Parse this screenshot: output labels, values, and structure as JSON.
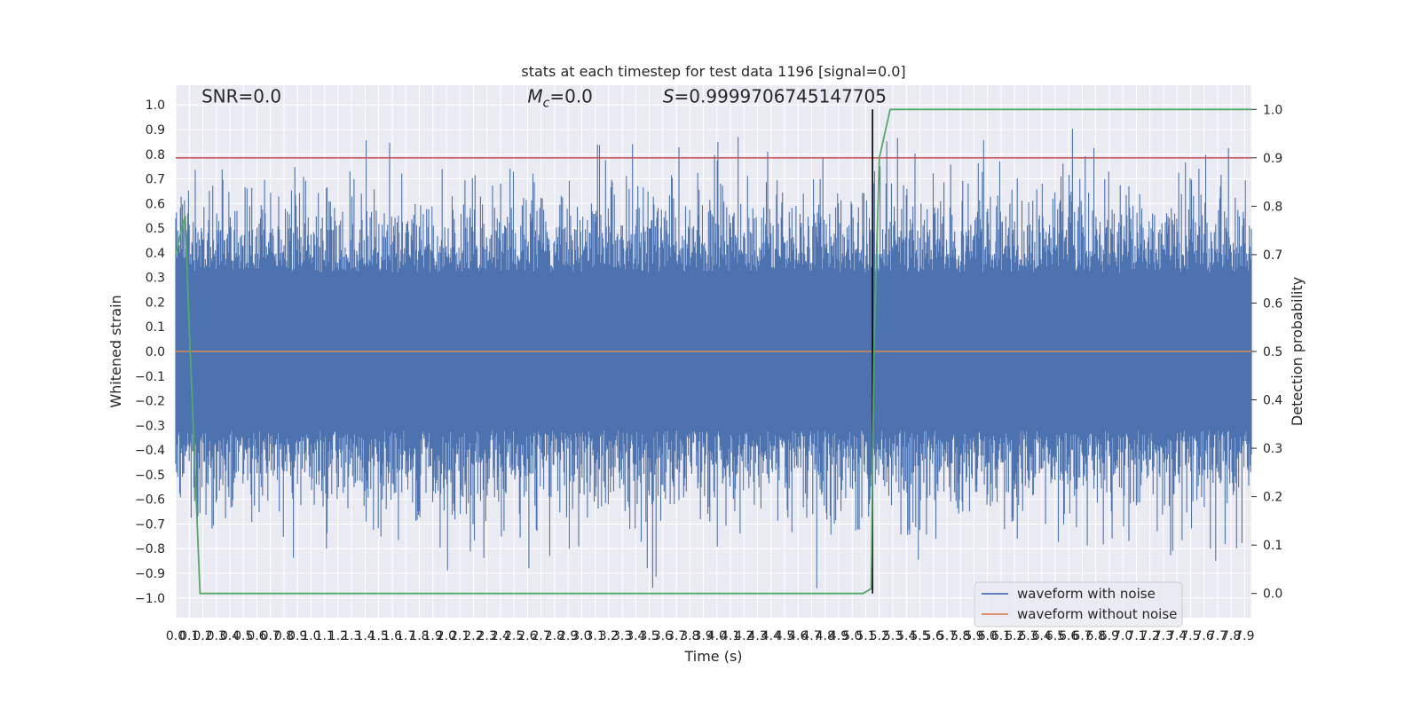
{
  "chart_data": {
    "type": "line",
    "title": "stats at each timestep for test data 1196 [signal=0.0]",
    "xlabel": "Time (s)",
    "ylabel": "Whitened strain",
    "ylabel_right": "Detection probability",
    "xlim": [
      0.0,
      7.95
    ],
    "ylim": [
      -1.08,
      1.08
    ],
    "ylim_right": [
      -0.05,
      1.05
    ],
    "x_ticks": [
      0.0,
      0.1,
      0.2,
      0.3,
      0.4,
      0.5,
      0.6,
      0.7,
      0.8,
      0.9,
      1.0,
      1.1,
      1.2,
      1.3,
      1.4,
      1.5,
      1.6,
      1.7,
      1.8,
      1.9,
      2.0,
      2.1,
      2.2,
      2.3,
      2.4,
      2.5,
      2.6,
      2.7,
      2.8,
      2.9,
      3.0,
      3.1,
      3.2,
      3.3,
      3.4,
      3.5,
      3.6,
      3.7,
      3.8,
      3.9,
      4.0,
      4.1,
      4.2,
      4.3,
      4.4,
      4.5,
      4.6,
      4.7,
      4.8,
      4.9,
      5.0,
      5.1,
      5.2,
      5.3,
      5.4,
      5.5,
      5.6,
      5.7,
      5.8,
      5.9,
      6.0,
      6.1,
      6.2,
      6.3,
      6.4,
      6.5,
      6.6,
      6.7,
      6.8,
      6.9,
      7.0,
      7.1,
      7.2,
      7.3,
      7.4,
      7.5,
      7.6,
      7.7,
      7.8,
      7.9
    ],
    "x_tick_labels": [
      "0.0",
      "0.1",
      "0.2",
      "0.3",
      "0.4",
      "0.5",
      "0.6",
      "0.7",
      "0.8",
      "0.9",
      "1.0",
      "1.1",
      "1.2",
      "1.3",
      "1.4",
      "1.5",
      "1.6",
      "1.7",
      "1.8",
      "1.9",
      "2.0",
      "2.1",
      "2.2",
      "2.3",
      "2.4",
      "2.5",
      "2.6",
      "2.7",
      "2.8",
      "2.9",
      "3.0",
      "3.1",
      "3.2",
      "3.3",
      "3.4",
      "3.5",
      "3.6",
      "3.7",
      "3.8",
      "3.9",
      "4.0",
      "4.1",
      "4.2",
      "4.3",
      "4.4",
      "4.5",
      "4.6",
      "4.7",
      "4.8",
      "4.9",
      "5.0",
      "5.1",
      "5.2",
      "5.3",
      "5.4",
      "5.5",
      "5.6",
      "5.7",
      "5.8",
      "5.9",
      "6.0",
      "6.1",
      "6.2",
      "6.3",
      "6.4",
      "6.5",
      "6.6",
      "6.7",
      "6.8",
      "6.9",
      "7.0",
      "7.1",
      "7.2",
      "7.3",
      "7.4",
      "7.5",
      "7.6",
      "7.7",
      "7.8",
      "7.9"
    ],
    "y_ticks": [
      -1.0,
      -0.9,
      -0.8,
      -0.7,
      -0.6,
      -0.5,
      -0.4,
      -0.3,
      -0.2,
      -0.1,
      0.0,
      0.1,
      0.2,
      0.3,
      0.4,
      0.5,
      0.6,
      0.7,
      0.8,
      0.9,
      1.0
    ],
    "y_tick_labels": [
      "−1.0",
      "−0.9",
      "−0.8",
      "−0.7",
      "−0.6",
      "−0.5",
      "−0.4",
      "−0.3",
      "−0.2",
      "−0.1",
      "0.0",
      "0.1",
      "0.2",
      "0.3",
      "0.4",
      "0.5",
      "0.6",
      "0.7",
      "0.8",
      "0.9",
      "1.0"
    ],
    "y_right_ticks": [
      0.0,
      0.1,
      0.2,
      0.3,
      0.4,
      0.5,
      0.6,
      0.7,
      0.8,
      0.9,
      1.0
    ],
    "y_right_tick_labels": [
      "0.0",
      "0.1",
      "0.2",
      "0.3",
      "0.4",
      "0.5",
      "0.6",
      "0.7",
      "0.8",
      "0.9",
      "1.0"
    ],
    "annotations": [
      {
        "text": "SNR=0.0",
        "x": 0.19,
        "y": 1.01
      },
      {
        "text_prefix": "M",
        "text_sub": "c",
        "text_suffix": "=0.0",
        "x": 2.6,
        "y": 1.01
      },
      {
        "text_prefix": "S",
        "text_suffix": "=0.9999706745147705",
        "x": 3.6,
        "y": 1.01
      }
    ],
    "threshold_line": {
      "y_right": 0.9,
      "color": "#c44e52"
    },
    "detection_vline": {
      "x": 5.15,
      "y_right_range": [
        0.0,
        1.0
      ],
      "color": "#000000"
    },
    "grid": true,
    "legend_position": "lower-right",
    "series": [
      {
        "name": "waveform with noise",
        "color": "#4c72b0",
        "axis": "left",
        "kind": "noise",
        "typical_amplitude": 0.4,
        "peak_amplitude": 1.0
      },
      {
        "name": "waveform without noise",
        "color": "#dd8452",
        "axis": "left",
        "constant": 0.0
      },
      {
        "color": "#55a868",
        "axis": "right",
        "x": [
          0.0,
          0.04,
          0.07,
          0.1,
          0.18,
          0.5,
          1.0,
          2.0,
          3.0,
          4.0,
          5.0,
          5.08,
          5.14,
          5.16,
          5.2,
          5.28,
          5.5,
          6.0,
          7.0,
          7.95
        ],
        "y": [
          0.7,
          0.75,
          0.78,
          0.55,
          0.0,
          0.0,
          0.0,
          0.0,
          0.0,
          0.0,
          0.0,
          0.0,
          0.01,
          0.5,
          0.9,
          1.0,
          1.0,
          1.0,
          1.0,
          1.0
        ]
      }
    ]
  }
}
